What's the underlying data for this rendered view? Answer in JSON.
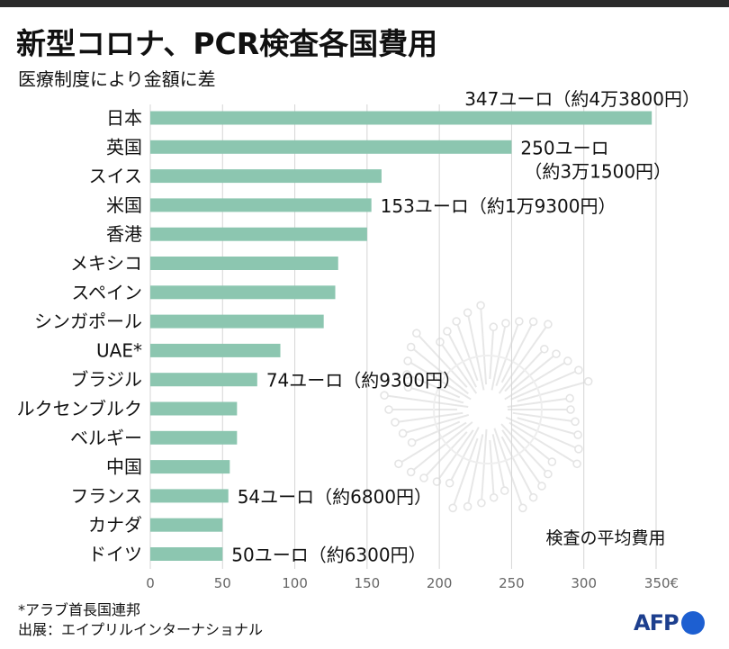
{
  "title": "新型コロナ、PCR検査各国費用",
  "subtitle": "医療制度により金額に差",
  "footnote": "*アラブ首長国連邦",
  "source": "出展：エイプリルインターナショナル",
  "logo": "AFP",
  "colors": {
    "bar": "#8cc6b0",
    "grid": "#d6d6d6",
    "text": "#111111",
    "logo": "#1d3f8e",
    "topbar": "#2a2a2a"
  },
  "icons": {
    "background": "virus-icon"
  },
  "chart_data": {
    "type": "bar",
    "orientation": "horizontal",
    "legend_label": "検査の平均費用",
    "categories": [
      "日本",
      "英国",
      "スイス",
      "米国",
      "香港",
      "メキシコ",
      "スペイン",
      "シンガポール",
      "UAE*",
      "ブラジル",
      "ルクセンブルク",
      "ベルギー",
      "中国",
      "フランス",
      "カナダ",
      "ドイツ"
    ],
    "values": [
      347,
      250,
      160,
      153,
      150,
      130,
      128,
      120,
      90,
      74,
      60,
      60,
      55,
      54,
      50,
      50
    ],
    "xlim": [
      0,
      350
    ],
    "x_ticks": [
      "0",
      "50",
      "100",
      "150",
      "200",
      "250",
      "300",
      "350€"
    ],
    "grid": true,
    "annotations": [
      {
        "category": "日本",
        "lines": [
          "347ユーロ（約4万3800円）"
        ]
      },
      {
        "category": "英国",
        "lines": [
          "250ユーロ",
          "（約3万1500円）"
        ]
      },
      {
        "category": "米国",
        "lines": [
          "153ユーロ（約1万9300円）"
        ]
      },
      {
        "category": "ブラジル",
        "lines": [
          "74ユーロ（約9300円）"
        ]
      },
      {
        "category": "フランス",
        "lines": [
          "54ユーロ（約6800円）"
        ]
      },
      {
        "category": "ドイツ",
        "lines": [
          "50ユーロ（約6300円）"
        ]
      }
    ]
  }
}
